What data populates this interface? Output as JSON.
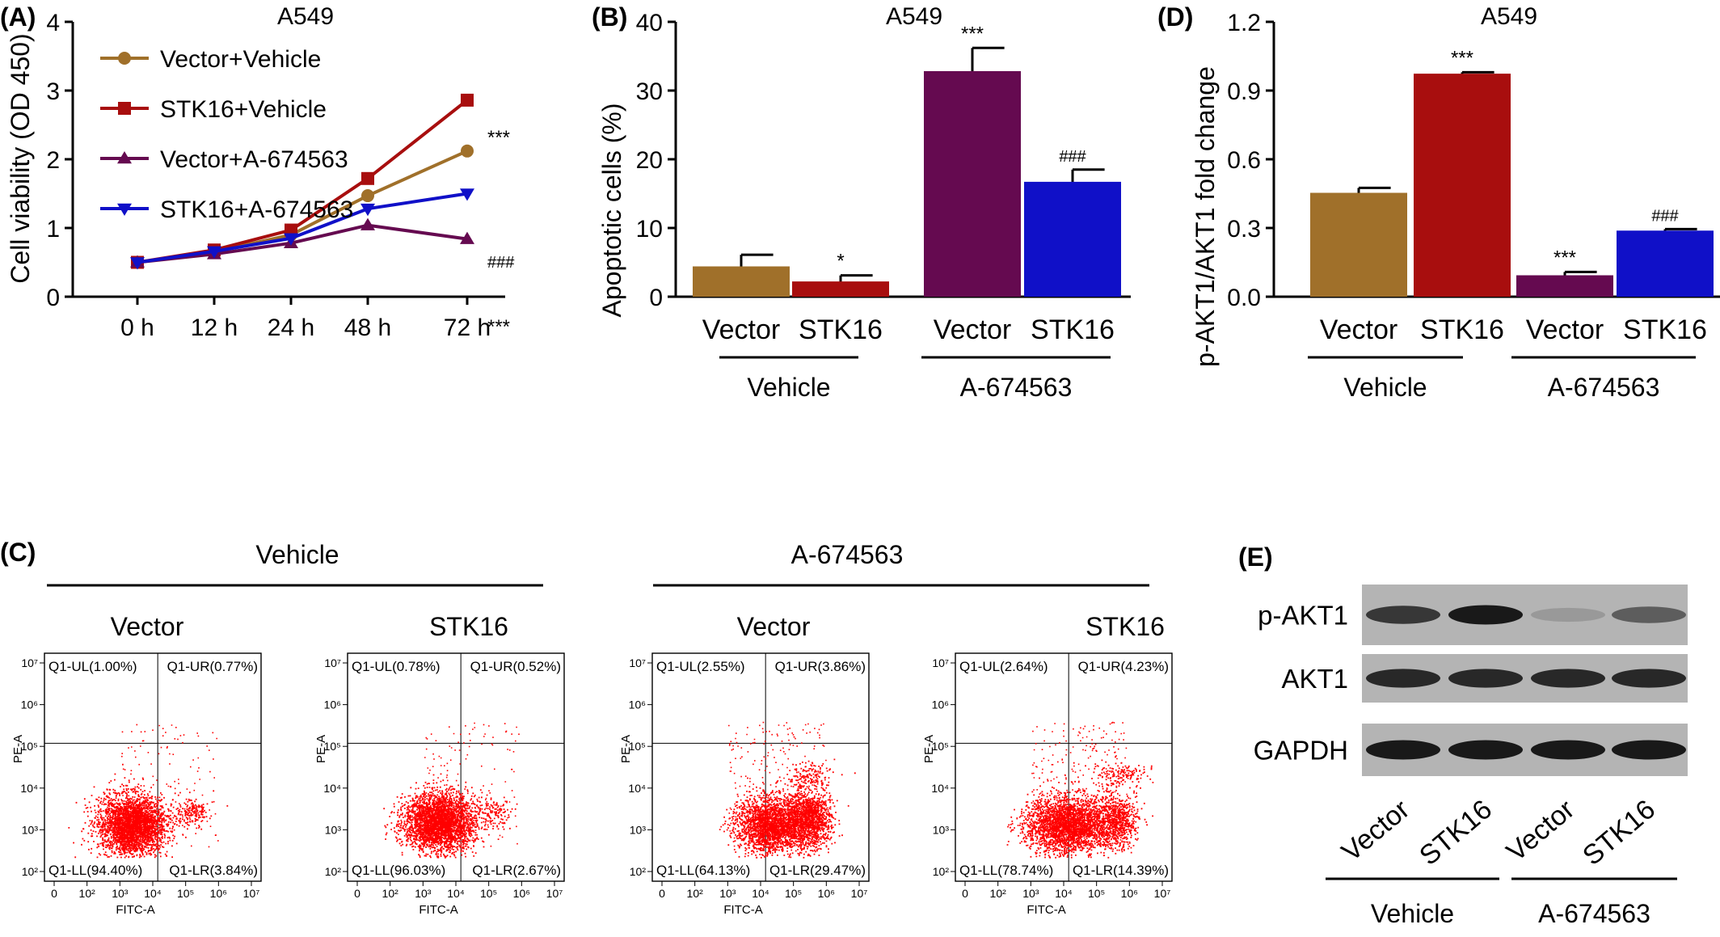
{
  "panels": {
    "A": {
      "letter": "(A)"
    },
    "B": {
      "letter": "(B)"
    },
    "C": {
      "letter": "(C)"
    },
    "D": {
      "letter": "(D)"
    },
    "E": {
      "letter": "(E)"
    }
  },
  "colors": {
    "vector_vehicle": "#a0702a",
    "stk16_vehicle": "#a80e0e",
    "vector_drug": "#650a50",
    "stk16_drug": "#1010c8",
    "dots": "#ff0000"
  },
  "chart_data": [
    {
      "id": "A",
      "type": "line",
      "title": "A549",
      "xlabel": "",
      "ylabel": "Cell viability (OD 450)",
      "categories": [
        "0 h",
        "12 h",
        "24 h",
        "48 h",
        "72 h"
      ],
      "ylim": [
        0,
        4
      ],
      "yticks": [
        "0",
        "1",
        "2",
        "3",
        "4"
      ],
      "series": [
        {
          "name": "Vector+Vehicle",
          "marker": "circle",
          "color": "#a0702a",
          "values": [
            0.5,
            0.65,
            0.9,
            1.47,
            2.12
          ]
        },
        {
          "name": "STK16+Vehicle",
          "marker": "square",
          "color": "#a80e0e",
          "values": [
            0.5,
            0.68,
            0.97,
            1.72,
            2.86
          ]
        },
        {
          "name": "Vector+A-674563",
          "marker": "triangle-up",
          "color": "#650a50",
          "values": [
            0.5,
            0.62,
            0.78,
            1.04,
            0.84
          ]
        },
        {
          "name": "STK16+A-674563",
          "marker": "triangle-down",
          "color": "#1010c8",
          "values": [
            0.5,
            0.66,
            0.85,
            1.28,
            1.5
          ]
        }
      ],
      "annotations": [
        "***",
        "###",
        "***"
      ]
    },
    {
      "id": "B",
      "type": "bar",
      "title": "A549",
      "ylabel": "Apoptotic cells (%)",
      "categories": [
        "Vector",
        "STK16",
        "Vector",
        "STK16"
      ],
      "groups": [
        "Vehicle",
        "A-674563"
      ],
      "values": [
        4.3,
        2.1,
        32.7,
        16.6
      ],
      "errors": [
        1.8,
        1.0,
        3.5,
        1.9
      ],
      "ylim": [
        0,
        40
      ],
      "yticks": [
        "0",
        "10",
        "20",
        "30",
        "40"
      ],
      "annotations": [
        "",
        "*",
        "***",
        "###"
      ]
    },
    {
      "id": "D",
      "type": "bar",
      "title": "A549",
      "ylabel": "p-AKT1/AKT1 fold change",
      "categories": [
        "Vector",
        "STK16",
        "Vector",
        "STK16"
      ],
      "groups": [
        "Vehicle",
        "A-674563"
      ],
      "values": [
        0.45,
        0.97,
        0.09,
        0.285
      ],
      "errors": [
        0.025,
        0.01,
        0.018,
        0.01
      ],
      "ylim": [
        0,
        1.2
      ],
      "yticks": [
        "0.0",
        "0.3",
        "0.6",
        "0.9",
        "1.2"
      ],
      "annotations": [
        "",
        "***",
        "***",
        "###"
      ]
    },
    {
      "id": "C",
      "type": "scatter",
      "groups": [
        "Vehicle",
        "A-674563"
      ],
      "xlabel": "FITC-A",
      "ylabel": "PE-A",
      "x_ticks": [
        "0",
        "10²",
        "10³",
        "10⁴",
        "10⁵",
        "10⁶",
        "10⁷"
      ],
      "y_ticks": [
        "10²",
        "10³",
        "10⁴",
        "10⁵",
        "10⁶",
        "10⁷"
      ],
      "plots": [
        {
          "label": "Vector",
          "UL": "Q1-UL(1.00%)",
          "UR": "Q1-UR(0.77%)",
          "LL": "Q1-LL(94.40%)",
          "LR": "Q1-LR(3.84%)"
        },
        {
          "label": "STK16",
          "UL": "Q1-UL(0.78%)",
          "UR": "Q1-UR(0.52%)",
          "LL": "Q1-LL(96.03%)",
          "LR": "Q1-LR(2.67%)"
        },
        {
          "label": "Vector",
          "UL": "Q1-UL(2.55%)",
          "UR": "Q1-UR(3.86%)",
          "LL": "Q1-LL(64.13%)",
          "LR": "Q1-LR(29.47%)"
        },
        {
          "label": "STK16",
          "UL": "Q1-UL(2.64%)",
          "UR": "Q1-UR(4.23%)",
          "LL": "Q1-LL(78.74%)",
          "LR": "Q1-LR(14.39%)"
        }
      ]
    }
  ],
  "western": {
    "rows": [
      "p-AKT1",
      "AKT1",
      "GAPDH"
    ],
    "lanes": [
      "Vector",
      "STK16",
      "Vector",
      "STK16"
    ],
    "groups": [
      "Vehicle",
      "A-674563"
    ],
    "band_intensity": [
      [
        0.8,
        1.0,
        0.15,
        0.55
      ],
      [
        0.9,
        0.9,
        0.9,
        0.9
      ],
      [
        1.0,
        1.0,
        1.0,
        1.0
      ]
    ]
  }
}
